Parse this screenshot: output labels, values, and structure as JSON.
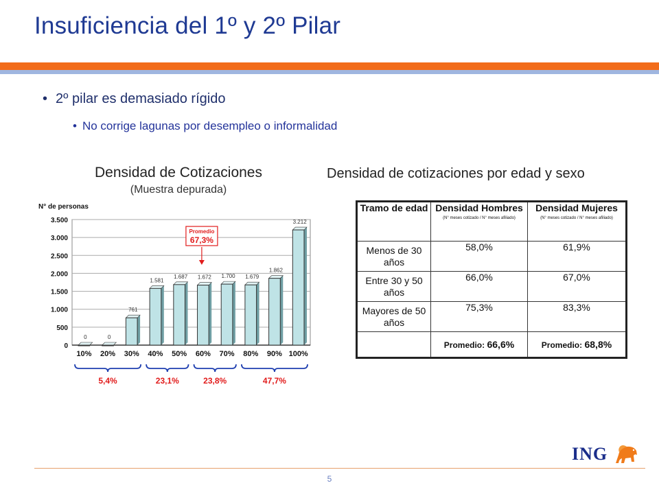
{
  "slide": {
    "title": "Insuficiencia del 1º y 2º Pilar",
    "bullet_1": "2º pilar es demasiado rígido",
    "bullet_2": "No corrige lagunas por desempleo o informalidad",
    "bullet_glyph": "•",
    "page_number": "5",
    "logo_text": "ING",
    "colors": {
      "title": "#1f3a93",
      "band_orange": "#f26c1a",
      "band_blue": "#9fb6e0",
      "bar_fill": "#bfe3e6",
      "annotation_red": "#e11b1b"
    }
  },
  "chart_data": {
    "type": "bar",
    "title": "Densidad de Cotizaciones",
    "subtitle": "(Muestra depurada)",
    "ylabel": "N° de personas",
    "categories": [
      "10%",
      "20%",
      "30%",
      "40%",
      "50%",
      "60%",
      "70%",
      "80%",
      "90%",
      "100%"
    ],
    "values": [
      0,
      0,
      761,
      1581,
      1687,
      1672,
      1700,
      1679,
      1862,
      3212
    ],
    "value_labels": [
      "0",
      "0",
      "761",
      "1.581",
      "1.687",
      "1.672",
      "1.700",
      "1.679",
      "1.862",
      "3.212"
    ],
    "ylim": [
      0,
      3500
    ],
    "yticks": [
      0,
      500,
      1000,
      1500,
      2000,
      2500,
      3000,
      3500
    ],
    "ytick_labels": [
      "0",
      "500",
      "1.000",
      "1.500",
      "2.000",
      "2.500",
      "3.000",
      "3.500"
    ],
    "grid": true,
    "average_box": {
      "label": "Promedio",
      "value": "67,3%"
    },
    "groups": [
      {
        "from": 0,
        "to": 2,
        "label": "5,4%"
      },
      {
        "from": 3,
        "to": 4,
        "label": "23,1%"
      },
      {
        "from": 5,
        "to": 6,
        "label": "23,8%"
      },
      {
        "from": 7,
        "to": 9,
        "label": "47,7%"
      }
    ]
  },
  "table": {
    "title": "Densidad de cotizaciones por edad y sexo",
    "headers": {
      "age": "Tramo de edad",
      "men": "Densidad Hombres",
      "women": "Densidad Mujeres",
      "note": "(N° meses cotizado / N° meses afiliado)"
    },
    "rows": [
      {
        "tramo": "Menos de 30 años",
        "hombres": "58,0%",
        "mujeres": "61,9%"
      },
      {
        "tramo": "Entre 30 y 50 años",
        "hombres": "66,0%",
        "mujeres": "67,0%"
      },
      {
        "tramo": "Mayores de 50 años",
        "hombres": "75,3%",
        "mujeres": "83,3%"
      }
    ],
    "promedio": {
      "label": "Promedio:",
      "hombres": "66,6%",
      "mujeres": "68,8%"
    }
  }
}
